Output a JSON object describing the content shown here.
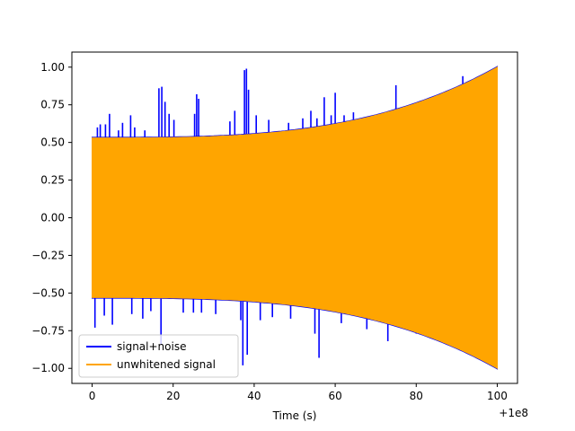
{
  "chart_data": {
    "type": "line",
    "title": "",
    "xlabel": "Time (s)",
    "ylabel": "",
    "x_offset_label": "+1e8",
    "xlim": [
      -5,
      105
    ],
    "ylim": [
      -1.1,
      1.1
    ],
    "x_ticks": [
      0,
      20,
      40,
      60,
      80,
      100
    ],
    "x_tick_labels": [
      "0",
      "20",
      "40",
      "60",
      "80",
      "100"
    ],
    "y_ticks": [
      -1.0,
      -0.75,
      -0.5,
      -0.25,
      0.0,
      0.25,
      0.5,
      0.75,
      1.0
    ],
    "y_tick_labels": [
      "−1.00",
      "−0.75",
      "−0.50",
      "−0.25",
      "0.00",
      "0.25",
      "0.50",
      "0.75",
      "1.00"
    ],
    "grid": false,
    "legend": "lower-left",
    "series": [
      {
        "name": "signal+noise",
        "color": "#0000ff",
        "x_range": [
          0,
          100
        ],
        "envelope_start": 0.53,
        "envelope_end": 1.0,
        "spikes": [
          {
            "x": 0.7,
            "y": -0.73
          },
          {
            "x": 1.3,
            "y": 0.6
          },
          {
            "x": 2.0,
            "y": 0.62
          },
          {
            "x": 3.0,
            "y": -0.65
          },
          {
            "x": 3.3,
            "y": 0.62
          },
          {
            "x": 4.3,
            "y": 0.69
          },
          {
            "x": 5.0,
            "y": -0.71
          },
          {
            "x": 6.5,
            "y": 0.58
          },
          {
            "x": 7.5,
            "y": 0.63
          },
          {
            "x": 9.5,
            "y": 0.68
          },
          {
            "x": 10.5,
            "y": 0.6
          },
          {
            "x": 9.8,
            "y": -0.64
          },
          {
            "x": 12.5,
            "y": -0.67
          },
          {
            "x": 13.0,
            "y": 0.58
          },
          {
            "x": 14.5,
            "y": -0.62
          },
          {
            "x": 16.5,
            "y": 0.86
          },
          {
            "x": 17.2,
            "y": 0.87
          },
          {
            "x": 18.0,
            "y": 0.77
          },
          {
            "x": 17.0,
            "y": -0.84
          },
          {
            "x": 19.0,
            "y": 0.69
          },
          {
            "x": 20.2,
            "y": 0.65
          },
          {
            "x": 22.5,
            "y": -0.63
          },
          {
            "x": 25.0,
            "y": -0.63
          },
          {
            "x": 25.3,
            "y": 0.69
          },
          {
            "x": 25.8,
            "y": 0.82
          },
          {
            "x": 26.3,
            "y": 0.79
          },
          {
            "x": 27.0,
            "y": -0.63
          },
          {
            "x": 30.5,
            "y": -0.64
          },
          {
            "x": 34.0,
            "y": 0.64
          },
          {
            "x": 35.2,
            "y": 0.71
          },
          {
            "x": 36.7,
            "y": -0.68
          },
          {
            "x": 37.6,
            "y": 0.98
          },
          {
            "x": 38.1,
            "y": 0.99
          },
          {
            "x": 37.2,
            "y": -0.98
          },
          {
            "x": 38.3,
            "y": -0.91
          },
          {
            "x": 38.6,
            "y": 0.85
          },
          {
            "x": 40.5,
            "y": 0.68
          },
          {
            "x": 41.5,
            "y": -0.68
          },
          {
            "x": 43.6,
            "y": 0.65
          },
          {
            "x": 44.5,
            "y": -0.66
          },
          {
            "x": 48.5,
            "y": 0.63
          },
          {
            "x": 49.0,
            "y": -0.67
          },
          {
            "x": 52.0,
            "y": 0.66
          },
          {
            "x": 54.0,
            "y": 0.71
          },
          {
            "x": 55.0,
            "y": -0.77
          },
          {
            "x": 55.5,
            "y": 0.66
          },
          {
            "x": 56.0,
            "y": -0.93
          },
          {
            "x": 57.3,
            "y": 0.8
          },
          {
            "x": 59.0,
            "y": 0.68
          },
          {
            "x": 60.0,
            "y": 0.83
          },
          {
            "x": 61.5,
            "y": -0.7
          },
          {
            "x": 62.2,
            "y": 0.68
          },
          {
            "x": 64.5,
            "y": 0.7
          },
          {
            "x": 67.8,
            "y": -0.74
          },
          {
            "x": 72.5,
            "y": 0.7
          },
          {
            "x": 73.0,
            "y": -0.82
          },
          {
            "x": 75.0,
            "y": 0.88
          },
          {
            "x": 80.0,
            "y": -0.77
          },
          {
            "x": 91.5,
            "y": 0.94
          }
        ]
      },
      {
        "name": "unwhitened signal",
        "color": "#ffa500",
        "x_range": [
          0,
          100
        ],
        "envelope_start": 0.53,
        "envelope_end": 1.0
      }
    ]
  }
}
